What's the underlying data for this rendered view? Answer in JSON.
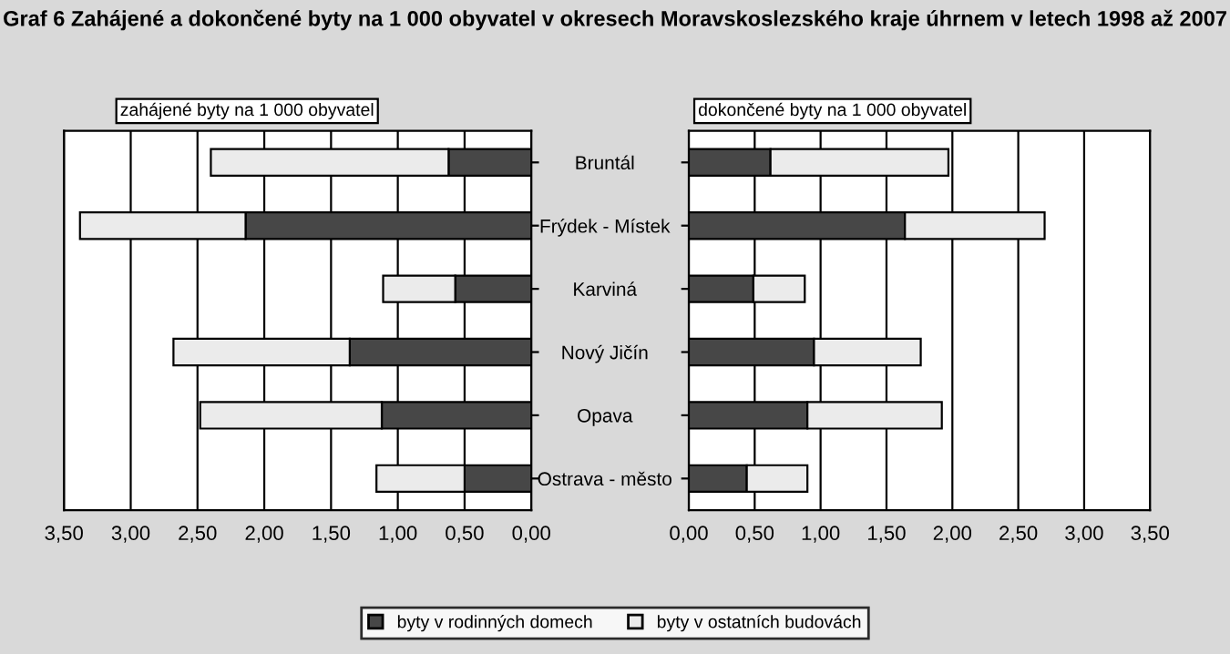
{
  "chart_data": [
    {
      "type": "bar",
      "orientation": "horizontal",
      "stacked": true,
      "title": "Graf 6 Zahájené a dokončené byty na 1 000 obyvatel v okresech Moravskoslezského kraje úhrnem v letech 1998 až 2007",
      "subtitle": "zahájené byty na 1 000 obyvatel",
      "categories": [
        "Bruntál",
        "Frýdek - Místek",
        "Karviná",
        "Nový Jičín",
        "Opava",
        "Ostrava - město"
      ],
      "series": [
        {
          "name": "byty v rodinných domech",
          "color": "#474747",
          "values": [
            0.62,
            2.14,
            0.57,
            1.36,
            1.12,
            0.5
          ]
        },
        {
          "name": "byty v ostatních budovách",
          "color": "#ebebeb",
          "values": [
            1.78,
            1.24,
            0.54,
            1.32,
            1.36,
            0.66
          ]
        }
      ],
      "xlim": [
        3.5,
        0
      ],
      "xticks": [
        {
          "value": 3.5,
          "label": "3,50"
        },
        {
          "value": 3.0,
          "label": "3,00"
        },
        {
          "value": 2.5,
          "label": "2,50"
        },
        {
          "value": 2.0,
          "label": "2,00"
        },
        {
          "value": 1.5,
          "label": "1,50"
        },
        {
          "value": 1.0,
          "label": "1,00"
        },
        {
          "value": 0.5,
          "label": "0,50"
        },
        {
          "value": 0,
          "label": "0,00"
        }
      ],
      "grid": "x",
      "legend": "bottom"
    },
    {
      "type": "bar",
      "orientation": "horizontal",
      "stacked": true,
      "subtitle": "dokončené byty na 1 000 obyvatel",
      "categories": [
        null,
        null,
        null,
        null,
        null,
        null
      ],
      "series": [
        {
          "color": "#474747",
          "values": [
            0.62,
            1.64,
            0.49,
            0.95,
            0.9,
            0.44
          ]
        },
        {
          "color": "#ebebeb",
          "values": [
            1.35,
            1.06,
            0.39,
            0.81,
            1.02,
            0.46
          ]
        }
      ],
      "xlim": [
        0,
        3.5
      ],
      "xticks": [
        {
          "value": 0,
          "label": "0,00"
        },
        {
          "value": 0.5,
          "label": "0,50"
        },
        {
          "value": 1.0,
          "label": "1,00"
        },
        {
          "value": 1.5,
          "label": "1,50"
        },
        {
          "value": 2.0,
          "label": "2,00"
        },
        {
          "value": 2.5,
          "label": "2,50"
        },
        {
          "value": 3.0,
          "label": "3,00"
        },
        {
          "value": 3.5,
          "label": "3,50"
        }
      ],
      "grid": "x",
      "tick_labels": "x"
    }
  ]
}
